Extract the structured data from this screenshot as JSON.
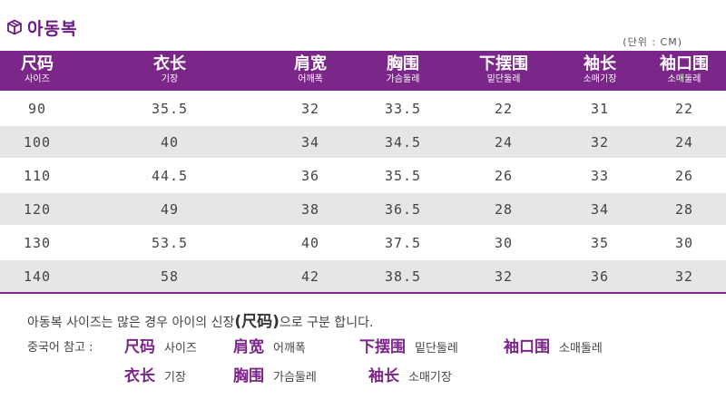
{
  "title": {
    "text": "아동복",
    "icon": "box-icon"
  },
  "unit_label": "(단위 : CM)",
  "table": {
    "headers": [
      {
        "zh": "尺码",
        "ko": "사이즈"
      },
      {
        "zh": "衣长",
        "ko": "기장"
      },
      {
        "zh": "肩宽",
        "ko": "어깨폭"
      },
      {
        "zh": "胸围",
        "ko": "가슴둘레"
      },
      {
        "zh": "下摆围",
        "ko": "밑단둘레"
      },
      {
        "zh": "袖长",
        "ko": "소매기장"
      },
      {
        "zh": "袖口围",
        "ko": "소매둘레"
      }
    ],
    "rows": [
      [
        "90",
        "35.5",
        "32",
        "33.5",
        "22",
        "31",
        "22"
      ],
      [
        "100",
        "40",
        "34",
        "34.5",
        "24",
        "32",
        "24"
      ],
      [
        "110",
        "44.5",
        "36",
        "35.5",
        "26",
        "33",
        "26"
      ],
      [
        "120",
        "49",
        "38",
        "36.5",
        "28",
        "34",
        "28"
      ],
      [
        "130",
        "53.5",
        "40",
        "37.5",
        "30",
        "35",
        "30"
      ],
      [
        "140",
        "58",
        "42",
        "38.5",
        "32",
        "36",
        "32"
      ]
    ]
  },
  "note": {
    "before": "아동복 사이즈는 많은 경우 아이의 신장",
    "highlight": "(尺码)",
    "after": "으로 구분 합니다."
  },
  "reference": {
    "lead": "중국어 참고 :",
    "items": [
      {
        "zh": "尺码",
        "ko": "사이즈"
      },
      {
        "zh": "肩宽",
        "ko": "어깨폭"
      },
      {
        "zh": "下摆围",
        "ko": "밑단둘레"
      },
      {
        "zh": "袖口围",
        "ko": "소매둘레"
      },
      {
        "zh": "衣长",
        "ko": "기장"
      },
      {
        "zh": "胸围",
        "ko": "가슴둘레"
      },
      {
        "zh": "袖长",
        "ko": "소매기장"
      }
    ]
  },
  "colors": {
    "accent": "#7b2689",
    "title": "#6a1a82",
    "stripe": "#e6e6e6"
  }
}
